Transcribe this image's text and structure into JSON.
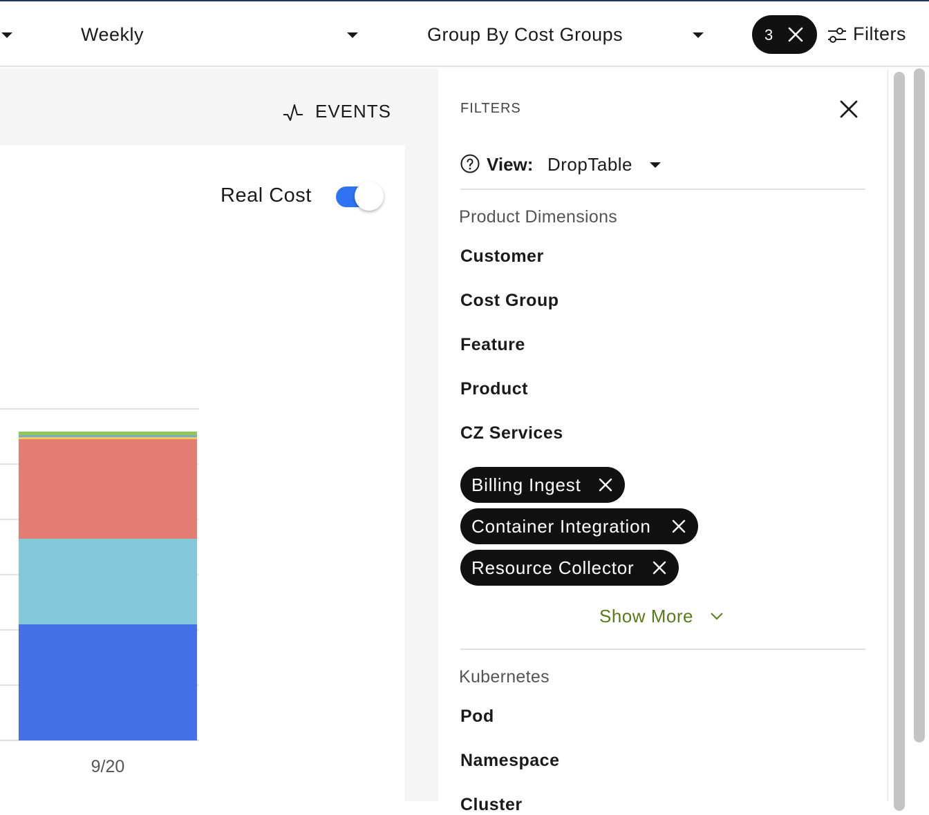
{
  "toolbar": {
    "period_label": "Weekly",
    "group_label": "Group By Cost Groups",
    "filter_count": "3",
    "filters_label": "Filters"
  },
  "chart_area": {
    "events_label": "EVENTS",
    "real_cost_label": "Real Cost",
    "real_cost_enabled": true
  },
  "chart_data": {
    "type": "bar",
    "stacked": true,
    "categories": [
      "9/20"
    ],
    "series": [
      {
        "values": [
          21
        ],
        "color": "#4570e6"
      },
      {
        "values": [
          15.5
        ],
        "color": "#85c8d9"
      },
      {
        "values": [
          18
        ],
        "color": "#e47e73"
      },
      {
        "values": [
          0.4
        ],
        "color": "#f0c85a"
      },
      {
        "values": [
          0.3
        ],
        "color": "#6aa3d8"
      },
      {
        "values": [
          0.7
        ],
        "color": "#8fc65a"
      }
    ],
    "gridlines": 6,
    "grid": true,
    "title": "",
    "xlabel": "",
    "ylabel": ""
  },
  "filters_panel": {
    "title": "FILTERS",
    "view_label": "View:",
    "view_value": "DropTable",
    "product_section": "Product Dimensions",
    "product_items": [
      "Customer",
      "Cost Group",
      "Feature",
      "Product",
      "CZ Services"
    ],
    "selected_services": [
      "Billing Ingest",
      "Container Integration",
      "Resource Collector"
    ],
    "show_more": "Show More",
    "kubernetes_section": "Kubernetes",
    "kubernetes_items": [
      "Pod",
      "Namespace",
      "Cluster"
    ]
  }
}
